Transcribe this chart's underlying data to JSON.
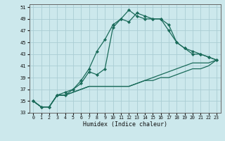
{
  "xlabel": "Humidex (Indice chaleur)",
  "bg_color": "#cce8ec",
  "grid_color": "#aacdd4",
  "line_color": "#1a6b5a",
  "xlim": [
    -0.5,
    23.5
  ],
  "ylim": [
    33,
    51.5
  ],
  "yticks": [
    33,
    35,
    37,
    39,
    41,
    43,
    45,
    47,
    49,
    51
  ],
  "xticks": [
    0,
    1,
    2,
    3,
    4,
    5,
    6,
    7,
    8,
    9,
    10,
    11,
    12,
    13,
    14,
    15,
    16,
    17,
    18,
    19,
    20,
    21,
    22,
    23
  ],
  "line1": [
    35.0,
    34.0,
    34.0,
    36.0,
    36.5,
    37.0,
    38.5,
    40.5,
    43.5,
    45.5,
    48.0,
    49.0,
    50.5,
    49.5,
    49.0,
    49.0,
    49.0,
    48.0,
    45.0,
    44.0,
    43.5,
    43.0,
    42.5,
    42.0
  ],
  "line2": [
    35.0,
    34.0,
    34.0,
    36.0,
    36.0,
    37.0,
    38.0,
    40.0,
    39.5,
    40.5,
    47.5,
    49.0,
    48.5,
    50.0,
    49.5,
    49.0,
    49.0,
    47.0,
    45.0,
    44.0,
    43.0,
    43.0,
    42.5,
    42.0
  ],
  "line3": [
    35.0,
    34.0,
    34.0,
    36.0,
    36.0,
    36.5,
    37.0,
    37.5,
    37.5,
    37.5,
    37.5,
    37.5,
    37.5,
    38.0,
    38.5,
    39.0,
    39.5,
    40.0,
    40.5,
    41.0,
    41.5,
    41.5,
    41.5,
    42.0
  ],
  "line4": [
    35.0,
    34.0,
    34.0,
    36.0,
    36.0,
    36.5,
    37.0,
    37.5,
    37.5,
    37.5,
    37.5,
    37.5,
    37.5,
    38.0,
    38.5,
    38.5,
    39.0,
    39.0,
    39.5,
    40.0,
    40.5,
    40.5,
    41.0,
    42.0
  ]
}
